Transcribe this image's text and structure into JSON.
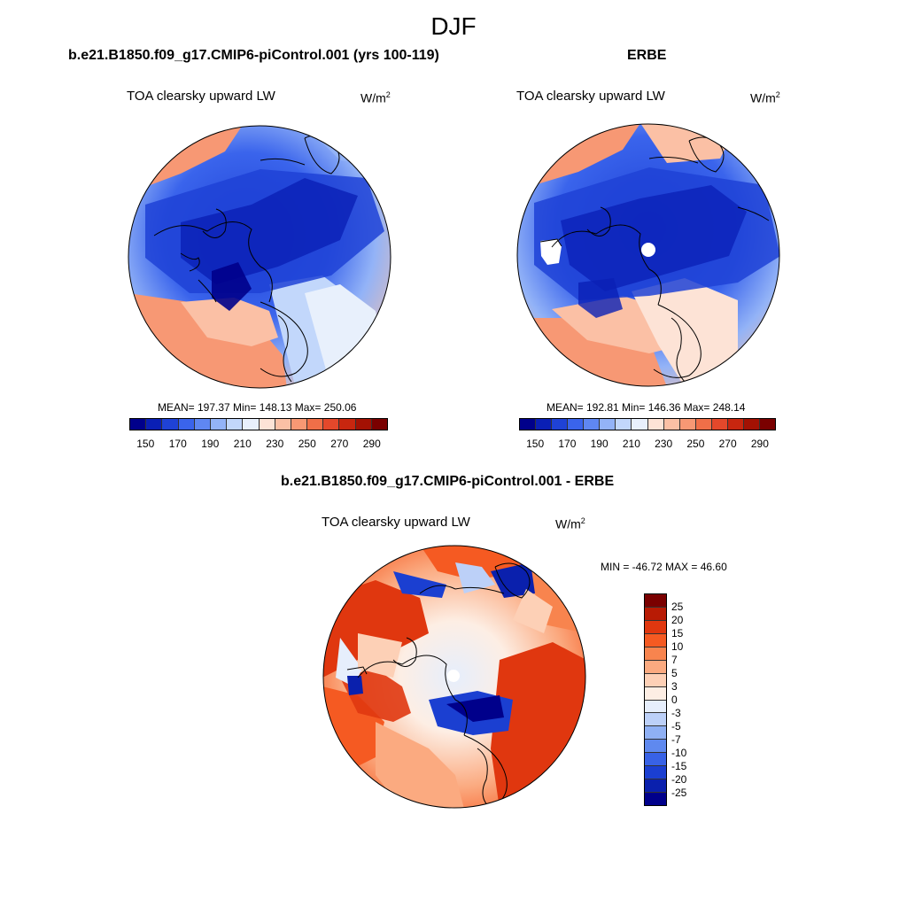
{
  "main_title": "DJF",
  "panels": {
    "left": {
      "title": "b.e21.B1850.f09_g17.CMIP6-piControl.001 (yrs 100-119)",
      "variable": "TOA clearsky upward LW",
      "units_base": "W/m",
      "units_exp": "2",
      "stats": "MEAN= 197.37  Min= 148.13  Max= 250.06"
    },
    "right": {
      "title": "ERBE",
      "variable": "TOA clearsky upward LW",
      "units_base": "W/m",
      "units_exp": "2",
      "stats": "MEAN= 192.81  Min= 146.36  Max= 248.14"
    },
    "diff": {
      "title": "b.e21.B1850.f09_g17.CMIP6-piControl.001 - ERBE",
      "variable": "TOA clearsky upward LW",
      "units_base": "W/m",
      "units_exp": "2",
      "stats": "MIN = -46.72 MAX =  46.60"
    }
  },
  "colorbar_abs": {
    "ticks": [
      "150",
      "170",
      "190",
      "210",
      "230",
      "250",
      "270",
      "290"
    ],
    "colors": [
      "#00008b",
      "#0a1fb5",
      "#1f42d6",
      "#3a64ec",
      "#5f87f2",
      "#93b3f7",
      "#c2d7fb",
      "#e8f0fc",
      "#fde3d6",
      "#fbc0a5",
      "#f79874",
      "#f06f48",
      "#e4482b",
      "#c8260f",
      "#a31103",
      "#7a0000"
    ]
  },
  "colorbar_diff": {
    "labels": [
      "25",
      "20",
      "15",
      "10",
      "7",
      "5",
      "3",
      "0",
      "-3",
      "-5",
      "-7",
      "-10",
      "-15",
      "-20",
      "-25"
    ],
    "colors": [
      "#7a0000",
      "#b81b04",
      "#e0370f",
      "#f55a22",
      "#f8844e",
      "#fbaa80",
      "#fdd0b6",
      "#fdeee4",
      "#e6eefc",
      "#bcd0f8",
      "#8fb0f4",
      "#5f89ef",
      "#3862e6",
      "#1b3fd1",
      "#0a20ad",
      "#00008b"
    ]
  }
}
